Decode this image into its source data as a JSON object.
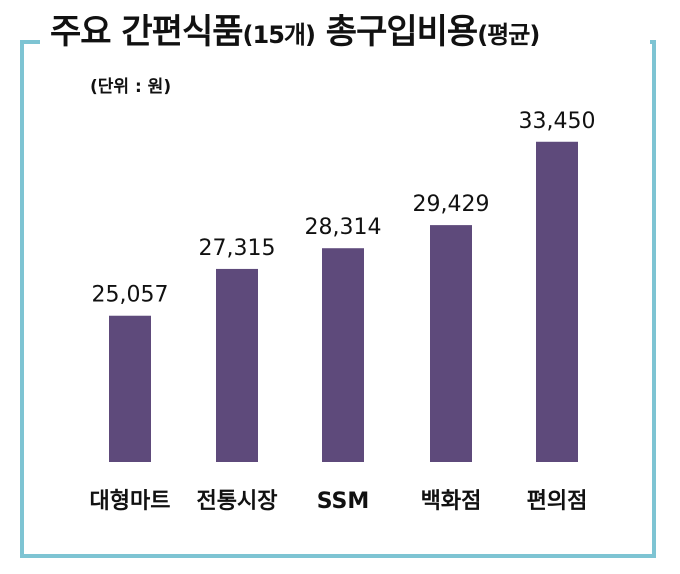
{
  "title": {
    "main": "주요 간편식품",
    "paren": "(15개)",
    "main2": " 총구입비용",
    "sub": "(평균)"
  },
  "unit_label": "(단위 : 원)",
  "colors": {
    "bar": "#5e4a7b",
    "frame": "#7ec4d3"
  },
  "chart_data": {
    "type": "bar",
    "title": "주요 간편식품(15개) 총구입비용(평균)",
    "categories": [
      "대형마트",
      "전통시장",
      "SSM",
      "백화점",
      "편의점"
    ],
    "values": [
      25057,
      27315,
      28314,
      29429,
      33450
    ],
    "value_labels": [
      "25,057",
      "27,315",
      "28,314",
      "29,429",
      "33,450"
    ],
    "ylabel": "",
    "xlabel": "",
    "ylim": [
      18000,
      34500
    ],
    "grid": false,
    "legend": "none"
  }
}
